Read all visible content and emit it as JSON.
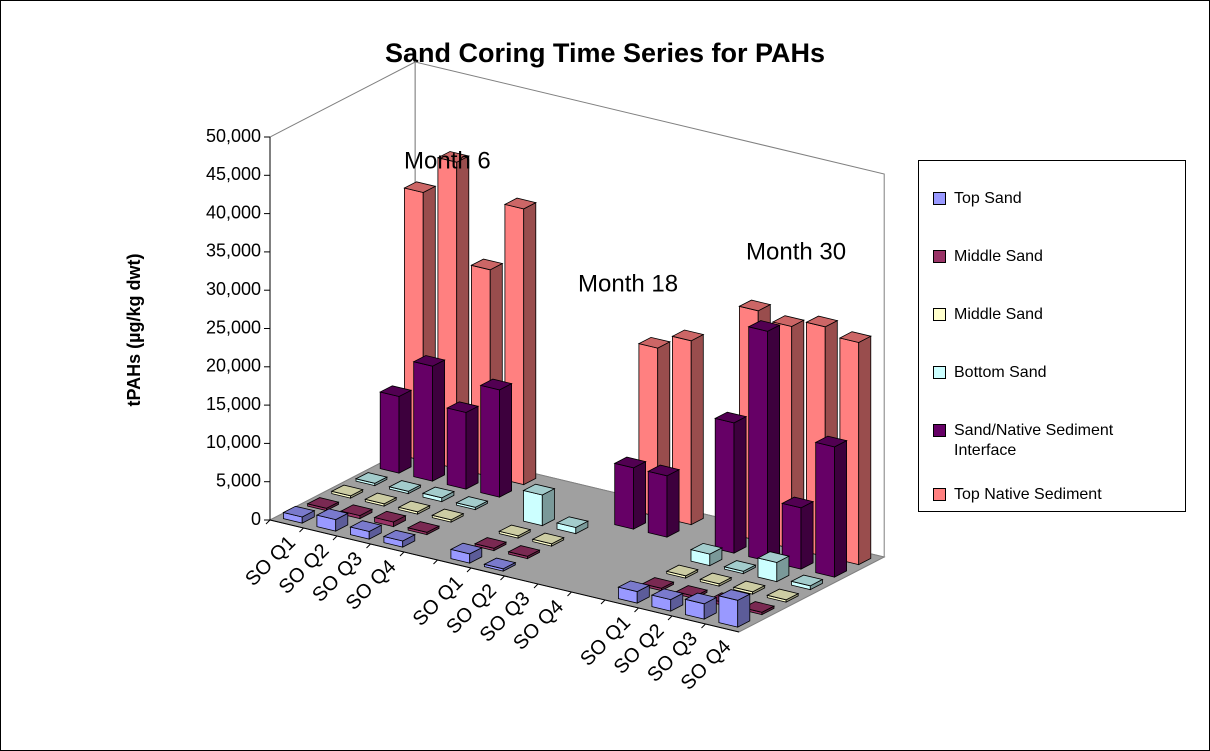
{
  "chart_data": {
    "type": "bar3d",
    "title": "Sand Coring Time Series for PAHs",
    "y_label": "tPAHs (µg/kg dwt)",
    "annotations": [
      "Month 6",
      "Month 18",
      "Month 30"
    ],
    "categories": [
      "SO Q1",
      "SO Q2",
      "SO Q3",
      "SO Q4",
      null,
      "SO Q1",
      "SO Q2",
      "SO Q3",
      "SO Q4",
      null,
      "SO Q1",
      "SO Q2",
      "SO Q3",
      "SO Q4"
    ],
    "ylim": [
      0,
      50000
    ],
    "yticks": [
      0,
      {
        "value": 5000,
        "label": "5,000"
      },
      {
        "value": 10000,
        "label": "10,000"
      },
      {
        "value": 15000,
        "label": "15,000"
      },
      {
        "value": 20000,
        "label": "20,000"
      },
      {
        "value": 25000,
        "label": "25,000"
      },
      {
        "value": 30000,
        "label": "30,000"
      },
      {
        "value": 35000,
        "label": "35,000"
      },
      {
        "value": 40000,
        "label": "40,000"
      },
      {
        "value": 45000,
        "label": "45,000"
      },
      {
        "value": 50000,
        "label": "50,000"
      }
    ],
    "series": [
      {
        "name": "Top Sand",
        "color": "#9999ff",
        "values": [
          800,
          1500,
          1000,
          800,
          null,
          1200,
          300,
          null,
          null,
          null,
          1500,
          1500,
          2000,
          3500
        ]
      },
      {
        "name": "Middle Sand",
        "color": "#993366",
        "values": [
          300,
          400,
          600,
          300,
          null,
          300,
          300,
          null,
          null,
          null,
          300,
          300,
          400,
          300
        ]
      },
      {
        "name": "Middle Sand",
        "color": "#ffffcc",
        "values": [
          300,
          300,
          300,
          300,
          null,
          300,
          300,
          null,
          null,
          null,
          300,
          300,
          300,
          300
        ]
      },
      {
        "name": "Bottom Sand",
        "color": "#ccffff",
        "values": [
          300,
          300,
          500,
          300,
          null,
          4000,
          800,
          null,
          null,
          null,
          1500,
          300,
          2500,
          500
        ]
      },
      {
        "name": "Sand/Native Sediment Interface",
        "color": "#660066",
        "values": [
          10000,
          15000,
          10000,
          14000,
          null,
          null,
          null,
          8000,
          8000,
          null,
          17000,
          30000,
          8000,
          17000
        ]
      },
      {
        "name": "Top Native Sediment",
        "color": "#ff8080",
        "values": [
          35000,
          40000,
          27000,
          36000,
          null,
          null,
          null,
          22000,
          24000,
          null,
          30000,
          29000,
          30000,
          29000
        ]
      }
    ]
  }
}
